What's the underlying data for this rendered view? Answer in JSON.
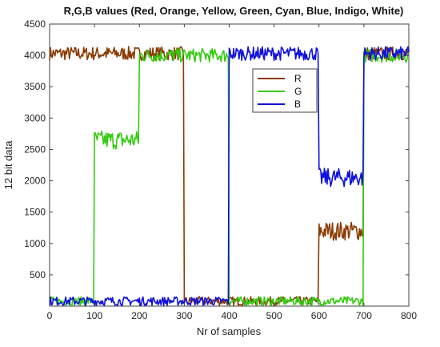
{
  "chart_data": {
    "type": "line",
    "title": "R,G,B values (Red, Orange, Yellow, Green, Cyan, Blue, Indigo, White)",
    "xlabel": "Nr of samples",
    "ylabel": "12 bit data",
    "xlim": [
      0,
      800
    ],
    "ylim": [
      0,
      4500
    ],
    "xticks": [
      0,
      100,
      200,
      300,
      400,
      500,
      600,
      700,
      800
    ],
    "yticks": [
      500,
      1000,
      1500,
      2000,
      2500,
      3000,
      3500,
      4000,
      4500
    ],
    "grid": false,
    "legend_position": "top-right",
    "segment_boundaries": [
      0,
      100,
      200,
      300,
      400,
      600,
      700,
      800
    ],
    "series": [
      {
        "name": "R",
        "color": "#8b3a00",
        "segments": [
          {
            "x_start": 0,
            "x_end": 100,
            "level": 4030
          },
          {
            "x_start": 100,
            "x_end": 200,
            "level": 4030
          },
          {
            "x_start": 200,
            "x_end": 300,
            "level": 4030
          },
          {
            "x_start": 300,
            "x_end": 400,
            "level": 80
          },
          {
            "x_start": 400,
            "x_end": 600,
            "level": 80
          },
          {
            "x_start": 600,
            "x_end": 700,
            "level": 1200
          },
          {
            "x_start": 700,
            "x_end": 800,
            "level": 4030
          }
        ]
      },
      {
        "name": "G",
        "color": "#33cc11",
        "segments": [
          {
            "x_start": 0,
            "x_end": 100,
            "level": 80
          },
          {
            "x_start": 100,
            "x_end": 200,
            "level": 2650
          },
          {
            "x_start": 200,
            "x_end": 300,
            "level": 4000
          },
          {
            "x_start": 300,
            "x_end": 400,
            "level": 4000
          },
          {
            "x_start": 400,
            "x_end": 600,
            "level": 80
          },
          {
            "x_start": 600,
            "x_end": 700,
            "level": 80
          },
          {
            "x_start": 700,
            "x_end": 800,
            "level": 4000
          }
        ]
      },
      {
        "name": "B",
        "color": "#1111dd",
        "segments": [
          {
            "x_start": 0,
            "x_end": 100,
            "level": 80
          },
          {
            "x_start": 100,
            "x_end": 200,
            "level": 80
          },
          {
            "x_start": 200,
            "x_end": 300,
            "level": 80
          },
          {
            "x_start": 300,
            "x_end": 400,
            "level": 80
          },
          {
            "x_start": 400,
            "x_end": 600,
            "level": 4030
          },
          {
            "x_start": 600,
            "x_end": 700,
            "level": 2050
          },
          {
            "x_start": 700,
            "x_end": 800,
            "level": 4030
          }
        ]
      }
    ]
  }
}
